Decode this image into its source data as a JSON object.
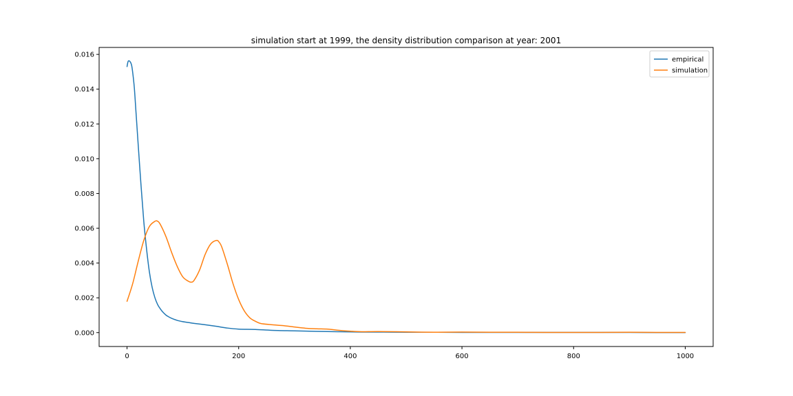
{
  "chart_data": {
    "type": "line",
    "title": "simulation start at 1999, the density distribution comparison at year: 2001",
    "xlabel": "",
    "ylabel": "",
    "xlim": [
      -50,
      1050
    ],
    "ylim": [
      -0.0008,
      0.0164
    ],
    "xticks": [
      0,
      200,
      400,
      600,
      800,
      1000
    ],
    "xtick_labels": [
      "0",
      "200",
      "400",
      "600",
      "800",
      "1000"
    ],
    "yticks": [
      0.0,
      0.002,
      0.004,
      0.006,
      0.008,
      0.01,
      0.012,
      0.014,
      0.016
    ],
    "ytick_labels": [
      "0.000",
      "0.002",
      "0.004",
      "0.006",
      "0.008",
      "0.010",
      "0.012",
      "0.014",
      "0.016"
    ],
    "grid": false,
    "legend_position": "top-right",
    "series": [
      {
        "name": "empirical",
        "color": "#1f77b4",
        "x": [
          0,
          2,
          5,
          8,
          10,
          13,
          16,
          20,
          25,
          30,
          35,
          40,
          45,
          50,
          55,
          60,
          65,
          70,
          75,
          80,
          90,
          100,
          110,
          120,
          140,
          160,
          180,
          200,
          230,
          260,
          300,
          340,
          380,
          420,
          460,
          500,
          550,
          600,
          650,
          700,
          750,
          800,
          850,
          900,
          950,
          1000
        ],
        "y": [
          0.0153,
          0.0156,
          0.0156,
          0.0154,
          0.015,
          0.0141,
          0.0127,
          0.0108,
          0.0085,
          0.0064,
          0.0048,
          0.0035,
          0.0026,
          0.002,
          0.0016,
          0.00135,
          0.00115,
          0.001,
          0.0009,
          0.00082,
          0.0007,
          0.00063,
          0.00058,
          0.00053,
          0.00045,
          0.00036,
          0.00026,
          0.0002,
          0.00018,
          0.00013,
          0.0001,
          7e-05,
          5e-05,
          3e-05,
          3e-05,
          2e-05,
          2e-05,
          1e-05,
          1e-05,
          1e-05,
          1e-05,
          1e-05,
          1e-05,
          1e-05,
          0.0,
          0.0
        ]
      },
      {
        "name": "simulation",
        "color": "#ff7f0e",
        "x": [
          0,
          10,
          20,
          30,
          40,
          50,
          55,
          60,
          70,
          80,
          90,
          100,
          110,
          115,
          120,
          130,
          140,
          150,
          160,
          165,
          170,
          180,
          190,
          200,
          210,
          220,
          230,
          240,
          260,
          280,
          300,
          320,
          340,
          360,
          380,
          400,
          420,
          450,
          500,
          550,
          600,
          650,
          700,
          750,
          800,
          850,
          900,
          950,
          1000
        ],
        "y": [
          0.0018,
          0.0028,
          0.0041,
          0.0053,
          0.0061,
          0.0064,
          0.0064,
          0.0062,
          0.0055,
          0.0046,
          0.0038,
          0.0032,
          0.00295,
          0.0029,
          0.003,
          0.0036,
          0.0045,
          0.0051,
          0.0053,
          0.0052,
          0.0049,
          0.0039,
          0.0028,
          0.0019,
          0.00125,
          0.00085,
          0.00065,
          0.00052,
          0.00045,
          0.0004,
          0.00032,
          0.00025,
          0.00022,
          0.0002,
          0.00013,
          8e-05,
          5e-05,
          6e-05,
          4e-05,
          2e-05,
          3e-05,
          2e-05,
          2e-05,
          1e-05,
          1e-05,
          1e-05,
          2e-05,
          1e-05,
          1e-05
        ]
      }
    ]
  }
}
